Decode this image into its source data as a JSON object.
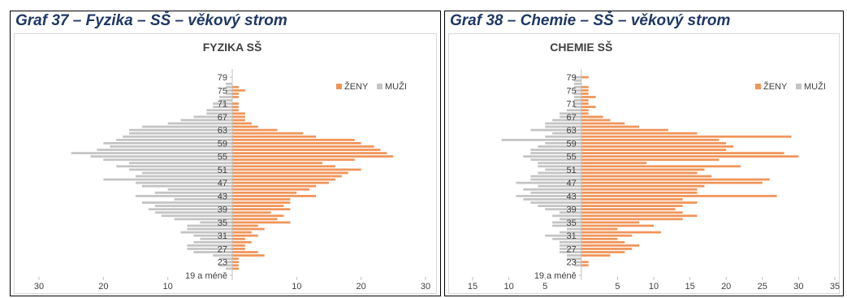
{
  "colors": {
    "zeny": "#f0955a",
    "muzi": "#c4c4c4",
    "axis": "#bfbfbf",
    "caption": "#1f3864"
  },
  "chart_data": [
    {
      "type": "bar",
      "caption": "Graf 37 – Fyzika – SŠ – věkový strom",
      "title": "FYZIKA SŠ",
      "orientation": "horizontal-population-pyramid",
      "legend": {
        "position": "top-right",
        "entries": [
          "ŽENY",
          "MUŽI"
        ]
      },
      "x_ticks": [
        "30",
        "20",
        "10",
        "",
        "10",
        "20",
        "30"
      ],
      "x_range": [
        -30,
        30
      ],
      "categories": [
        "19 a méně",
        "20",
        "21",
        "22",
        "23",
        "24",
        "25",
        "26",
        "27",
        "28",
        "29",
        "30",
        "31",
        "32",
        "33",
        "34",
        "35",
        "36",
        "37",
        "38",
        "39",
        "40",
        "41",
        "42",
        "43",
        "44",
        "45",
        "46",
        "47",
        "48",
        "49",
        "50",
        "51",
        "52",
        "53",
        "54",
        "55",
        "56",
        "57",
        "58",
        "59",
        "60",
        "61",
        "62",
        "63",
        "64",
        "65",
        "66",
        "67",
        "68",
        "69",
        "70",
        "71",
        "72",
        "73",
        "74",
        "75",
        "76",
        "77",
        "78",
        "79",
        "80"
      ],
      "category_labels": [
        "19 a méně",
        "",
        "",
        "",
        "23",
        "",
        "",
        "",
        "27",
        "",
        "",
        "",
        "31",
        "",
        "",
        "",
        "35",
        "",
        "",
        "",
        "39",
        "",
        "",
        "",
        "43",
        "",
        "",
        "",
        "47",
        "",
        "",
        "",
        "51",
        "",
        "",
        "",
        "55",
        "",
        "",
        "",
        "59",
        "",
        "",
        "",
        "63",
        "",
        "",
        "",
        "67",
        "",
        "",
        "",
        "71",
        "",
        "",
        "",
        "75",
        "",
        "",
        "",
        "79",
        ""
      ],
      "series": [
        {
          "name": "ŽENY",
          "values": [
            0,
            0,
            1,
            1,
            1,
            1,
            5,
            4,
            2,
            2,
            3,
            2,
            4,
            3,
            5,
            4,
            9,
            7,
            8,
            6,
            9,
            8,
            9,
            9,
            13,
            10,
            12,
            13,
            15,
            16,
            17,
            18,
            20,
            16,
            14,
            19,
            25,
            24,
            23,
            22,
            20,
            19,
            13,
            11,
            7,
            4,
            3,
            2,
            2,
            2,
            1,
            1,
            1,
            0,
            1,
            1,
            2,
            1,
            0,
            0,
            0,
            0
          ]
        },
        {
          "name": "MUŽI",
          "values": [
            0,
            0,
            1,
            2,
            1,
            2,
            3,
            6,
            7,
            7,
            6,
            5,
            6,
            8,
            7,
            7,
            5,
            9,
            11,
            12,
            13,
            12,
            14,
            9,
            15,
            12,
            10,
            14,
            15,
            20,
            15,
            14,
            16,
            18,
            16,
            20,
            22,
            25,
            21,
            19,
            20,
            18,
            17,
            16,
            16,
            14,
            10,
            8,
            6,
            4,
            4,
            3,
            3,
            2,
            2,
            1,
            1,
            1,
            1,
            0,
            0,
            0
          ]
        }
      ]
    },
    {
      "type": "bar",
      "caption": "Graf 38 – Chemie – SŠ – věkový strom",
      "title": "CHEMIE SŠ",
      "orientation": "horizontal-population-pyramid",
      "legend": {
        "position": "top-right",
        "entries": [
          "ŽENY",
          "MUŽI"
        ]
      },
      "x_ticks": [
        "15",
        "10",
        "5",
        "",
        "5",
        "10",
        "15",
        "20",
        "25",
        "30",
        "35"
      ],
      "x_range": [
        -15,
        35
      ],
      "categories": [
        "19 a méně",
        "20",
        "21",
        "22",
        "23",
        "24",
        "25",
        "26",
        "27",
        "28",
        "29",
        "30",
        "31",
        "32",
        "33",
        "34",
        "35",
        "36",
        "37",
        "38",
        "39",
        "40",
        "41",
        "42",
        "43",
        "44",
        "45",
        "46",
        "47",
        "48",
        "49",
        "50",
        "51",
        "52",
        "53",
        "54",
        "55",
        "56",
        "57",
        "58",
        "59",
        "60",
        "61",
        "62",
        "63",
        "64",
        "65",
        "66",
        "67",
        "68",
        "69",
        "70",
        "71",
        "72",
        "73",
        "74",
        "75",
        "76",
        "77",
        "78",
        "79",
        "80"
      ],
      "category_labels": [
        "19 a méně",
        "",
        "",
        "",
        "23",
        "",
        "",
        "",
        "27",
        "",
        "",
        "",
        "31",
        "",
        "",
        "",
        "35",
        "",
        "",
        "",
        "39",
        "",
        "",
        "",
        "43",
        "",
        "",
        "",
        "47",
        "",
        "",
        "",
        "51",
        "",
        "",
        "",
        "55",
        "",
        "",
        "",
        "59",
        "",
        "",
        "",
        "63",
        "",
        "",
        "",
        "67",
        "",
        "",
        "",
        "71",
        "",
        "",
        "",
        "75",
        "",
        "",
        "",
        "79",
        ""
      ],
      "series": [
        {
          "name": "ŽENY",
          "values": [
            0,
            0,
            0,
            1,
            1,
            0,
            4,
            6,
            7,
            8,
            6,
            5,
            7,
            11,
            5,
            10,
            8,
            14,
            16,
            14,
            13,
            14,
            16,
            14,
            27,
            16,
            16,
            17,
            25,
            26,
            18,
            16,
            17,
            22,
            9,
            19,
            30,
            28,
            20,
            21,
            20,
            19,
            29,
            16,
            12,
            8,
            6,
            4,
            3,
            1,
            1,
            2,
            1,
            1,
            2,
            1,
            1,
            1,
            0,
            0,
            1,
            0
          ]
        },
        {
          "name": "MUŽI",
          "values": [
            0,
            0,
            0,
            1,
            1,
            2,
            2,
            3,
            3,
            3,
            3,
            4,
            5,
            3,
            2,
            4,
            4,
            3,
            4,
            3,
            5,
            6,
            7,
            8,
            9,
            7,
            8,
            6,
            9,
            7,
            7,
            6,
            5,
            6,
            6,
            7,
            8,
            7,
            7,
            6,
            5,
            11,
            5,
            4,
            7,
            5,
            5,
            4,
            3,
            3,
            2,
            1,
            1,
            1,
            1,
            1,
            1,
            1,
            1,
            1,
            1,
            0
          ]
        }
      ]
    }
  ]
}
